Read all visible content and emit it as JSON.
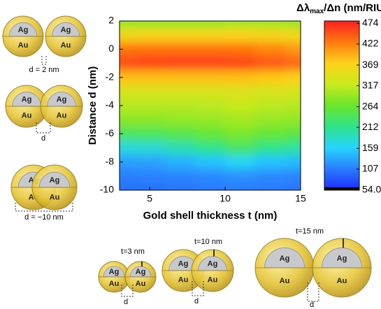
{
  "chart_data": {
    "type": "contour",
    "x_label": "Gold shell thickness t (nm)",
    "y_label": "Distance d (nm)",
    "x": [
      3,
      5,
      7,
      9,
      11,
      13,
      15
    ],
    "y": [
      2,
      1,
      0,
      -1,
      -2,
      -3,
      -4,
      -5,
      -6,
      -7,
      -8,
      -9,
      -10
    ],
    "z": [
      [
        290,
        290,
        290,
        290,
        295,
        295,
        290
      ],
      [
        360,
        365,
        365,
        365,
        370,
        365,
        360
      ],
      [
        430,
        432,
        432,
        432,
        430,
        420,
        410
      ],
      [
        455,
        460,
        462,
        462,
        460,
        450,
        440
      ],
      [
        385,
        385,
        385,
        385,
        385,
        380,
        375
      ],
      [
        335,
        335,
        335,
        335,
        340,
        335,
        335
      ],
      [
        310,
        310,
        310,
        312,
        318,
        312,
        310
      ],
      [
        285,
        285,
        288,
        292,
        300,
        292,
        290
      ],
      [
        240,
        242,
        250,
        262,
        275,
        262,
        255
      ],
      [
        175,
        180,
        195,
        215,
        235,
        215,
        205
      ],
      [
        128,
        130,
        140,
        150,
        165,
        150,
        145
      ],
      [
        108,
        110,
        112,
        115,
        120,
        115,
        112
      ],
      [
        100,
        100,
        102,
        104,
        106,
        104,
        102
      ]
    ],
    "xlim": [
      3,
      15
    ],
    "xticks": [
      5,
      10,
      15
    ],
    "ylim": [
      -10,
      2
    ],
    "yticks": [
      -10,
      -8,
      -6,
      -4,
      -2,
      0,
      2
    ],
    "colorbar_title": "Δλ",
    "colorbar_title_sub": "max",
    "colorbar_title_rest": "/Δn (nm/RIU)",
    "clim": [
      54,
      480
    ],
    "cticks": [
      {
        "value": 54,
        "label": "54.0"
      },
      107,
      159,
      212,
      264,
      317,
      369,
      422,
      474
    ],
    "colormap": [
      "#1b2bff",
      "#2a7dff",
      "#27d4ff",
      "#2ee38a",
      "#6be62b",
      "#c8ea1e",
      "#ffd21a",
      "#ff7a10",
      "#ff1f1f"
    ]
  },
  "schematics": {
    "core": "Ag",
    "shell": "Au",
    "side": [
      {
        "caption": "d = 2 nm"
      },
      {
        "caption": "d"
      },
      {
        "caption": "d = −10 nm"
      }
    ],
    "bottom": [
      {
        "title": "t=3 nm",
        "caption": "d"
      },
      {
        "title": "t=10 nm",
        "caption": "d"
      },
      {
        "title": "t=15 nm",
        "caption": "d"
      }
    ]
  }
}
